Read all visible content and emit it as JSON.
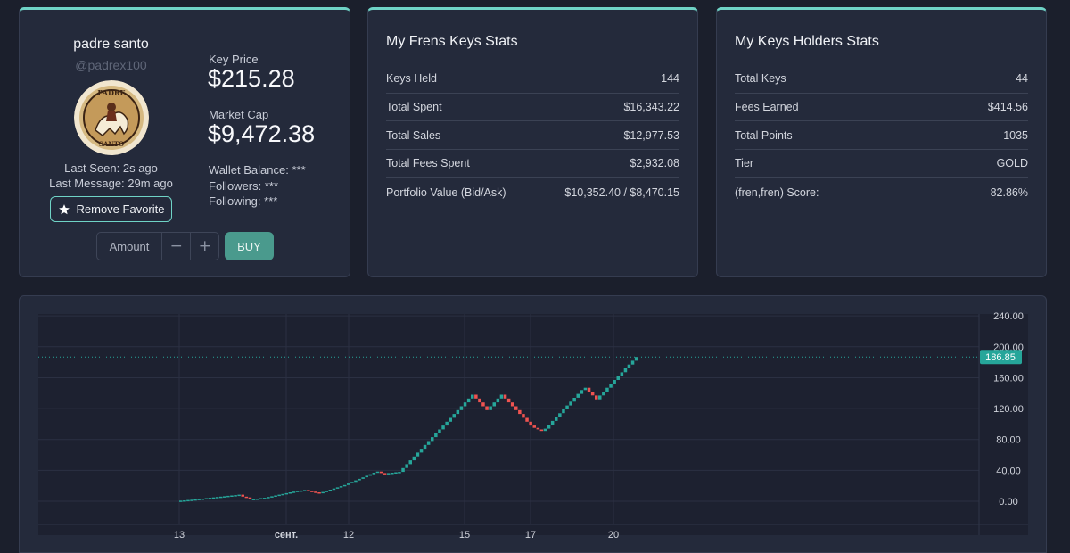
{
  "profile": {
    "name": "padre santo",
    "handle": "@padrex100",
    "avatar_text_top": "PADRE",
    "avatar_text_bottom": "SANTO",
    "last_seen": "Last Seen: 2s ago",
    "last_message": "Last Message: 29m ago",
    "favorite_label": "Remove Favorite",
    "key_price_label": "Key Price",
    "key_price": "$215.28",
    "market_cap_label": "Market Cap",
    "market_cap": "$9,472.38",
    "wallet_balance": "Wallet Balance: ***",
    "followers": "Followers: ***",
    "following": "Following: ***",
    "amount_placeholder": "Amount",
    "minus": "−",
    "plus": "+",
    "buy_label": "BUY"
  },
  "frens_stats": {
    "title": "My Frens Keys Stats",
    "rows": [
      {
        "label": "Keys Held",
        "value": "144"
      },
      {
        "label": "Total Spent",
        "value": "$16,343.22"
      },
      {
        "label": "Total Sales",
        "value": "$12,977.53"
      },
      {
        "label": "Total Fees Spent",
        "value": "$2,932.08"
      },
      {
        "label": "Portfolio Value (Bid/Ask)",
        "value": "$10,352.40 / $8,470.15"
      }
    ]
  },
  "holders_stats": {
    "title": "My Keys Holders Stats",
    "rows": [
      {
        "label": "Total Keys",
        "value": "44"
      },
      {
        "label": "Fees Earned",
        "value": "$414.56"
      },
      {
        "label": "Total Points",
        "value": "1035"
      },
      {
        "label": "Tier",
        "value": "GOLD"
      },
      {
        "label": "(fren,fren) Score:",
        "value": "82.86%"
      }
    ]
  },
  "colors": {
    "accent": "#6fd3c6",
    "up": "#26a69a",
    "down": "#ef5350",
    "chart_bg": "#1d2130",
    "grid": "#2b3042",
    "axis_text": "#d1d4dc"
  },
  "chart_data": {
    "type": "line",
    "title": "",
    "xlabel": "",
    "ylabel": "",
    "ylim": [
      -10,
      244
    ],
    "y_ticks": [
      "0.00",
      "40.00",
      "80.00",
      "120.00",
      "160.00",
      "200.00",
      "240.00"
    ],
    "y_tick_values": [
      0,
      40,
      80,
      120,
      160,
      200,
      240
    ],
    "x_ticks": [
      "13",
      "сент.",
      "12",
      "15",
      "17",
      "20"
    ],
    "x_tick_index": [
      0,
      9,
      14,
      24,
      30,
      37
    ],
    "x_count": 42,
    "last_price_label": "186.85",
    "last_price": 186.85,
    "series": [
      {
        "values": [
          0,
          0.8,
          1.2,
          1.6,
          2.0,
          2.5,
          3.0,
          3.5,
          4.0,
          4.5,
          5.0,
          5.5,
          6.0,
          6.5,
          7.0,
          7.5,
          8.0,
          8.5,
          6.0,
          5.0,
          2.5,
          3.0,
          3.5,
          4.0,
          4.5,
          5.5,
          6.5,
          7.5,
          8.5,
          9.5,
          10.5,
          11.5,
          12.5,
          13.5,
          14.0,
          14.5,
          13.5,
          12.5,
          11.5,
          10.5,
          12.0,
          13.5,
          15.0,
          16.5,
          18.0,
          19.5,
          21.0,
          23.0,
          25.0,
          27.0,
          29.0,
          31.0,
          33.0,
          35.0,
          37.0,
          38.5,
          36.5,
          36.0,
          36.5,
          37.0,
          37.5,
          38.0,
          43.0,
          48.0,
          53.0,
          58.0,
          63.0,
          68.0,
          73.0,
          78.0,
          83.0,
          88.0,
          93.0,
          98.0,
          103.0,
          108.0,
          113.0,
          118.0,
          123.0,
          128.0,
          133.0,
          138.0,
          133.0,
          128.0,
          123.0,
          118.0,
          123.0,
          128.0,
          133.0,
          138.0,
          133.0,
          128.0,
          123.0,
          118.0,
          113.0,
          108.0,
          103.0,
          98.0,
          95.0,
          93.0,
          91.0,
          94.0,
          99.0,
          104.0,
          109.0,
          114.0,
          119.0,
          124.0,
          129.0,
          134.0,
          139.0,
          144.0,
          147.0,
          142.0,
          137.0,
          132.0,
          137.0,
          142.0,
          147.0,
          152.0,
          157.0,
          162.0,
          167.0,
          172.0,
          177.0,
          182.0,
          186.85
        ]
      }
    ]
  }
}
